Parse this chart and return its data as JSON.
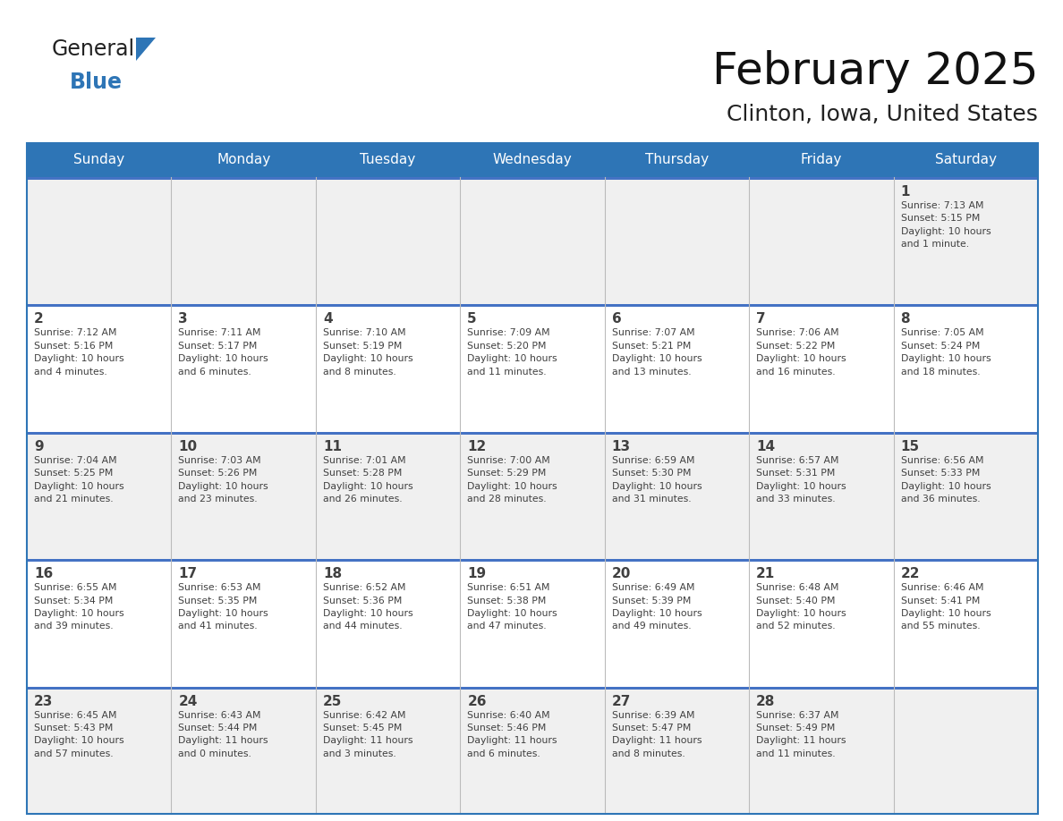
{
  "title": "February 2025",
  "subtitle": "Clinton, Iowa, United States",
  "header_bg_color": "#2E75B6",
  "header_text_color": "#FFFFFF",
  "row_bg_color_light": "#FFFFFF",
  "row_bg_color_gray": "#F0F0F0",
  "border_color": "#2E75B6",
  "divider_color": "#4472C4",
  "text_color": "#404040",
  "days_of_week": [
    "Sunday",
    "Monday",
    "Tuesday",
    "Wednesday",
    "Thursday",
    "Friday",
    "Saturday"
  ],
  "calendar_data": [
    [
      {
        "day": "",
        "info": ""
      },
      {
        "day": "",
        "info": ""
      },
      {
        "day": "",
        "info": ""
      },
      {
        "day": "",
        "info": ""
      },
      {
        "day": "",
        "info": ""
      },
      {
        "day": "",
        "info": ""
      },
      {
        "day": "1",
        "info": "Sunrise: 7:13 AM\nSunset: 5:15 PM\nDaylight: 10 hours\nand 1 minute."
      }
    ],
    [
      {
        "day": "2",
        "info": "Sunrise: 7:12 AM\nSunset: 5:16 PM\nDaylight: 10 hours\nand 4 minutes."
      },
      {
        "day": "3",
        "info": "Sunrise: 7:11 AM\nSunset: 5:17 PM\nDaylight: 10 hours\nand 6 minutes."
      },
      {
        "day": "4",
        "info": "Sunrise: 7:10 AM\nSunset: 5:19 PM\nDaylight: 10 hours\nand 8 minutes."
      },
      {
        "day": "5",
        "info": "Sunrise: 7:09 AM\nSunset: 5:20 PM\nDaylight: 10 hours\nand 11 minutes."
      },
      {
        "day": "6",
        "info": "Sunrise: 7:07 AM\nSunset: 5:21 PM\nDaylight: 10 hours\nand 13 minutes."
      },
      {
        "day": "7",
        "info": "Sunrise: 7:06 AM\nSunset: 5:22 PM\nDaylight: 10 hours\nand 16 minutes."
      },
      {
        "day": "8",
        "info": "Sunrise: 7:05 AM\nSunset: 5:24 PM\nDaylight: 10 hours\nand 18 minutes."
      }
    ],
    [
      {
        "day": "9",
        "info": "Sunrise: 7:04 AM\nSunset: 5:25 PM\nDaylight: 10 hours\nand 21 minutes."
      },
      {
        "day": "10",
        "info": "Sunrise: 7:03 AM\nSunset: 5:26 PM\nDaylight: 10 hours\nand 23 minutes."
      },
      {
        "day": "11",
        "info": "Sunrise: 7:01 AM\nSunset: 5:28 PM\nDaylight: 10 hours\nand 26 minutes."
      },
      {
        "day": "12",
        "info": "Sunrise: 7:00 AM\nSunset: 5:29 PM\nDaylight: 10 hours\nand 28 minutes."
      },
      {
        "day": "13",
        "info": "Sunrise: 6:59 AM\nSunset: 5:30 PM\nDaylight: 10 hours\nand 31 minutes."
      },
      {
        "day": "14",
        "info": "Sunrise: 6:57 AM\nSunset: 5:31 PM\nDaylight: 10 hours\nand 33 minutes."
      },
      {
        "day": "15",
        "info": "Sunrise: 6:56 AM\nSunset: 5:33 PM\nDaylight: 10 hours\nand 36 minutes."
      }
    ],
    [
      {
        "day": "16",
        "info": "Sunrise: 6:55 AM\nSunset: 5:34 PM\nDaylight: 10 hours\nand 39 minutes."
      },
      {
        "day": "17",
        "info": "Sunrise: 6:53 AM\nSunset: 5:35 PM\nDaylight: 10 hours\nand 41 minutes."
      },
      {
        "day": "18",
        "info": "Sunrise: 6:52 AM\nSunset: 5:36 PM\nDaylight: 10 hours\nand 44 minutes."
      },
      {
        "day": "19",
        "info": "Sunrise: 6:51 AM\nSunset: 5:38 PM\nDaylight: 10 hours\nand 47 minutes."
      },
      {
        "day": "20",
        "info": "Sunrise: 6:49 AM\nSunset: 5:39 PM\nDaylight: 10 hours\nand 49 minutes."
      },
      {
        "day": "21",
        "info": "Sunrise: 6:48 AM\nSunset: 5:40 PM\nDaylight: 10 hours\nand 52 minutes."
      },
      {
        "day": "22",
        "info": "Sunrise: 6:46 AM\nSunset: 5:41 PM\nDaylight: 10 hours\nand 55 minutes."
      }
    ],
    [
      {
        "day": "23",
        "info": "Sunrise: 6:45 AM\nSunset: 5:43 PM\nDaylight: 10 hours\nand 57 minutes."
      },
      {
        "day": "24",
        "info": "Sunrise: 6:43 AM\nSunset: 5:44 PM\nDaylight: 11 hours\nand 0 minutes."
      },
      {
        "day": "25",
        "info": "Sunrise: 6:42 AM\nSunset: 5:45 PM\nDaylight: 11 hours\nand 3 minutes."
      },
      {
        "day": "26",
        "info": "Sunrise: 6:40 AM\nSunset: 5:46 PM\nDaylight: 11 hours\nand 6 minutes."
      },
      {
        "day": "27",
        "info": "Sunrise: 6:39 AM\nSunset: 5:47 PM\nDaylight: 11 hours\nand 8 minutes."
      },
      {
        "day": "28",
        "info": "Sunrise: 6:37 AM\nSunset: 5:49 PM\nDaylight: 11 hours\nand 11 minutes."
      },
      {
        "day": "",
        "info": ""
      }
    ]
  ],
  "logo_text_general": "General",
  "logo_text_blue": "Blue",
  "logo_color_general": "#222222",
  "logo_color_blue": "#2E75B6",
  "logo_triangle_color": "#2E75B6",
  "fig_width": 11.88,
  "fig_height": 9.18,
  "dpi": 100
}
